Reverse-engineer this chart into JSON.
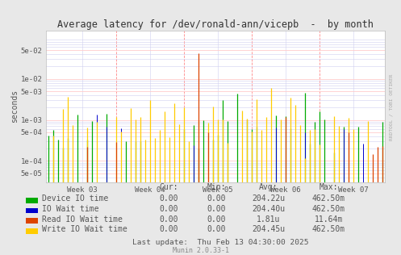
{
  "title": "Average latency for /dev/ronald-ann/vicepb  -  by month",
  "ylabel": "seconds",
  "side_label": "RRDTOOL / TOBI OETIKER",
  "bg_color": "#e8e8e8",
  "plot_bg_color": "#ffffff",
  "grid_major_color": "#ffcccc",
  "grid_minor_color": "#d0d0f0",
  "week_labels": [
    "Week 03",
    "Week 04",
    "Week 05",
    "Week 06",
    "Week 07"
  ],
  "ylim_min": 3e-05,
  "ylim_max": 0.15,
  "yticks": [
    5e-05,
    0.0001,
    0.0005,
    0.001,
    0.005,
    0.01,
    0.05
  ],
  "ylabels": [
    "5e-05",
    "1e-04",
    "5e-04",
    "1e-03",
    "5e-03",
    "1e-02",
    "5e-02"
  ],
  "legend_items": [
    {
      "label": "Device IO time",
      "color": "#00aa00"
    },
    {
      "label": "IO Wait time",
      "color": "#0000cc"
    },
    {
      "label": "Read IO Wait time",
      "color": "#dd4400"
    },
    {
      "label": "Write IO Wait time",
      "color": "#ffcc00"
    }
  ],
  "legend_cols": [
    "Cur:",
    "Min:",
    "Avg:",
    "Max:"
  ],
  "legend_data": [
    [
      "0.00",
      "0.00",
      "204.22u",
      "462.50m"
    ],
    [
      "0.00",
      "0.00",
      "204.40u",
      "462.50m"
    ],
    [
      "0.00",
      "0.00",
      "1.81u",
      "11.64m"
    ],
    [
      "0.00",
      "0.00",
      "204.45u",
      "462.50m"
    ]
  ],
  "footer": "Last update:  Thu Feb 13 04:30:00 2025",
  "munin_version": "Munin 2.0.33-1",
  "font_color": "#555555",
  "font_family": "DejaVu Sans Mono",
  "title_color": "#333333"
}
